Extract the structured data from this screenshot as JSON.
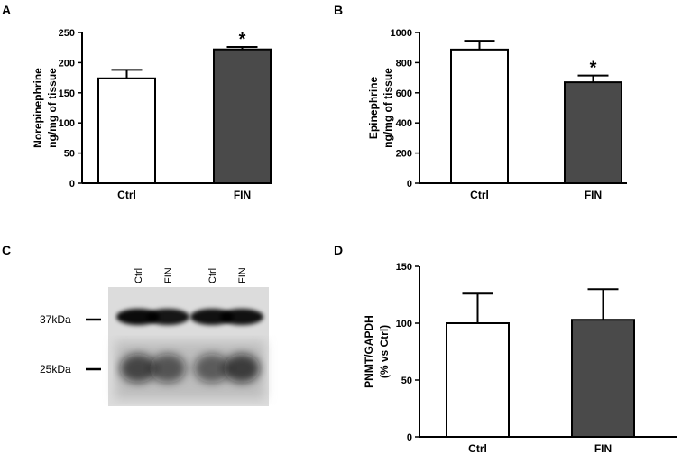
{
  "panel_labels": [
    "A",
    "B",
    "C",
    "D"
  ],
  "chart_data": [
    {
      "panel": "A",
      "type": "bar",
      "categories": [
        "Ctrl",
        "FIN"
      ],
      "values": [
        174,
        222
      ],
      "errors": [
        14,
        4
      ],
      "significance": [
        "",
        "*"
      ],
      "ylabel": [
        "Norepinephrine",
        "ng/mg of tissue"
      ],
      "ylim": [
        0,
        250
      ],
      "yticks": [
        0,
        50,
        100,
        150,
        200,
        250
      ],
      "bar_colors": [
        "#ffffff",
        "#4a4a4a"
      ]
    },
    {
      "panel": "B",
      "type": "bar",
      "categories": [
        "Ctrl",
        "FIN"
      ],
      "values": [
        887,
        670
      ],
      "errors": [
        58,
        45
      ],
      "significance": [
        "",
        "*"
      ],
      "ylabel": [
        "Epinephrine",
        "ng/mg of tissue"
      ],
      "ylim": [
        0,
        1000
      ],
      "yticks": [
        0,
        200,
        400,
        600,
        800,
        1000
      ],
      "bar_colors": [
        "#ffffff",
        "#4a4a4a"
      ]
    },
    {
      "panel": "D",
      "type": "bar",
      "categories": [
        "Ctrl",
        "FIN"
      ],
      "values": [
        100,
        103
      ],
      "errors": [
        26,
        27
      ],
      "significance": [
        "",
        ""
      ],
      "ylabel": [
        "PNMT/GAPDH",
        "(% vs Ctrl)"
      ],
      "ylim": [
        0,
        150
      ],
      "yticks": [
        0,
        50,
        100,
        150
      ],
      "bar_colors": [
        "#ffffff",
        "#4a4a4a"
      ]
    }
  ],
  "blot": {
    "lanes": [
      "Ctrl",
      "FIN",
      "Ctrl",
      "FIN"
    ],
    "markers": [
      "37kDa",
      "25kDa"
    ],
    "upper_band_intensity": [
      0.95,
      0.9,
      0.92,
      0.92
    ],
    "lower_band_intensity": [
      0.7,
      0.62,
      0.58,
      0.75
    ]
  }
}
